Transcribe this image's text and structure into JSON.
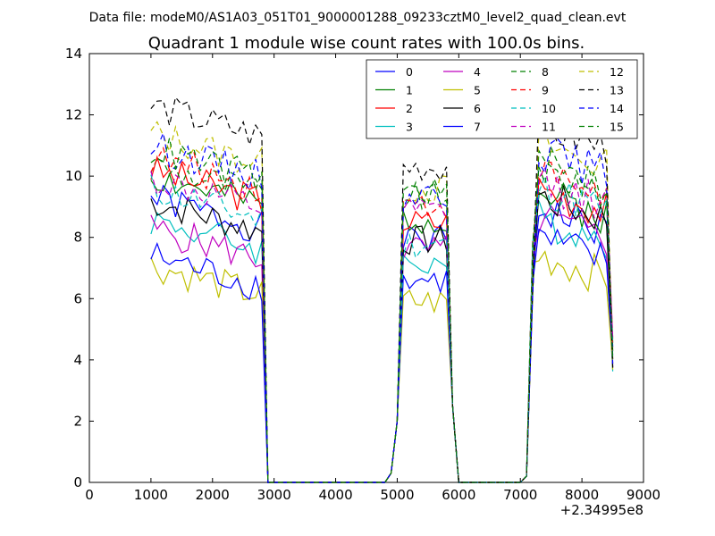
{
  "suptitle": "Data file: modeM0/AS1A03_051T01_9000001288_09233cztM0_level2_quad_clean.evt",
  "chart_data": {
    "type": "line",
    "title": "Quadrant 1 module wise count rates with 100.0s bins.",
    "xlabel": "",
    "ylabel": "",
    "x_offset_label": "+2.34995e8",
    "xlim": [
      0,
      9000
    ],
    "ylim": [
      0,
      14
    ],
    "xticks": [
      "0",
      "1000",
      "2000",
      "3000",
      "4000",
      "5000",
      "6000",
      "7000",
      "8000",
      "9000"
    ],
    "yticks": [
      "0",
      "2",
      "4",
      "6",
      "8",
      "10",
      "12",
      "14"
    ],
    "grid": false,
    "legend_position": "top-right",
    "legend_columns": 4,
    "series": [
      {
        "name": "0",
        "color": "#0000ff",
        "dash": false,
        "seg1_level": 8.3,
        "seg2_level": 7.9,
        "seg3_level": 8.2,
        "seed": 1
      },
      {
        "name": "1",
        "color": "#008000",
        "dash": false,
        "seg1_level": 9.0,
        "seg2_level": 8.6,
        "seg3_level": 8.7,
        "seed": 2
      },
      {
        "name": "2",
        "color": "#ff0000",
        "dash": false,
        "seg1_level": 9.2,
        "seg2_level": 8.5,
        "seg3_level": 8.9,
        "seed": 3
      },
      {
        "name": "3",
        "color": "#00bfbf",
        "dash": false,
        "seg1_level": 7.6,
        "seg2_level": 7.2,
        "seg3_level": 7.9,
        "seed": 4
      },
      {
        "name": "4",
        "color": "#bf00bf",
        "dash": false,
        "seg1_level": 7.3,
        "seg2_level": 7.6,
        "seg3_level": 7.9,
        "seed": 5
      },
      {
        "name": "5",
        "color": "#bfbf00",
        "dash": false,
        "seg1_level": 6.1,
        "seg2_level": 5.9,
        "seg3_level": 6.7,
        "seed": 6
      },
      {
        "name": "6",
        "color": "#000000",
        "dash": false,
        "seg1_level": 8.2,
        "seg2_level": 7.9,
        "seg3_level": 8.6,
        "seed": 7
      },
      {
        "name": "7",
        "color": "#0000ff",
        "dash": false,
        "seg1_level": 6.4,
        "seg2_level": 6.6,
        "seg3_level": 7.2,
        "seed": 8
      },
      {
        "name": "8",
        "color": "#008000",
        "dash": true,
        "seg1_level": 9.4,
        "seg2_level": 9.3,
        "seg3_level": 9.5,
        "seed": 9
      },
      {
        "name": "9",
        "color": "#ff0000",
        "dash": true,
        "seg1_level": 9.6,
        "seg2_level": 9.1,
        "seg3_level": 9.4,
        "seed": 10
      },
      {
        "name": "10",
        "color": "#00bfbf",
        "dash": true,
        "seg1_level": 8.6,
        "seg2_level": 7.8,
        "seg3_level": 8.9,
        "seed": 11
      },
      {
        "name": "11",
        "color": "#bf00bf",
        "dash": true,
        "seg1_level": 8.9,
        "seg2_level": 8.8,
        "seg3_level": 9.1,
        "seed": 12
      },
      {
        "name": "12",
        "color": "#bfbf00",
        "dash": true,
        "seg1_level": 10.4,
        "seg2_level": 9.6,
        "seg3_level": 10.3,
        "seed": 13
      },
      {
        "name": "13",
        "color": "#000000",
        "dash": true,
        "seg1_level": 11.3,
        "seg2_level": 10.3,
        "seg3_level": 10.9,
        "seed": 14
      },
      {
        "name": "14",
        "color": "#0000ff",
        "dash": true,
        "seg1_level": 10.0,
        "seg2_level": 9.4,
        "seg3_level": 10.1,
        "seed": 15
      },
      {
        "name": "15",
        "color": "#008000",
        "dash": true,
        "seg1_level": 9.9,
        "seg2_level": 9.5,
        "seg3_level": 9.7,
        "seed": 16
      }
    ]
  }
}
